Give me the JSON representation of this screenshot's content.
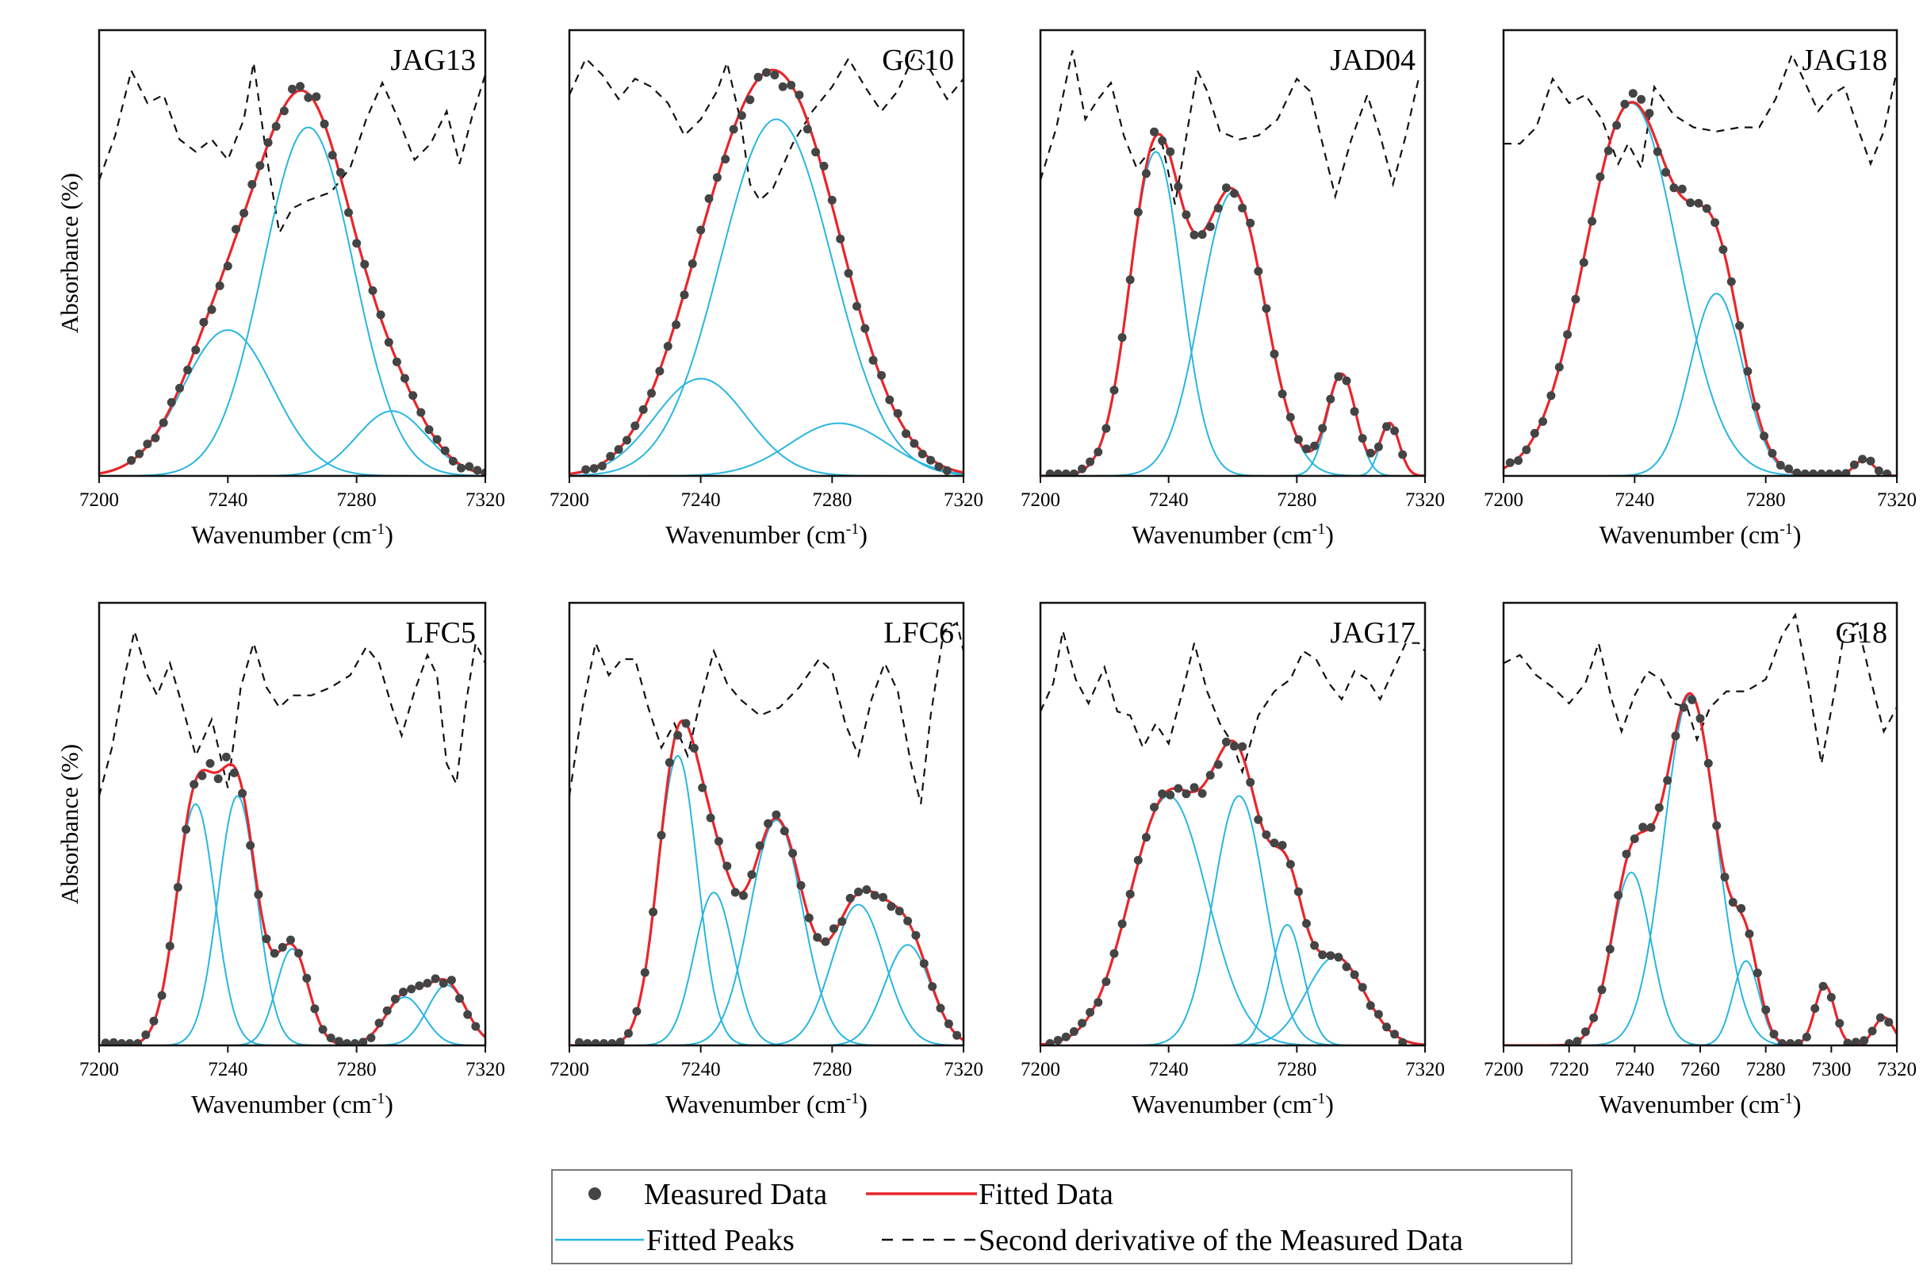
{
  "figure": {
    "legend": {
      "measured": "Measured Data",
      "fitted": "Fitted Data",
      "peaks": "Fitted Peaks",
      "second_derivative": "Second derivative of the Measured Data"
    },
    "colors": {
      "measured": "#444444",
      "fitted": "#e8262a",
      "peaks": "#29b6e0",
      "second_derivative": "#111111"
    }
  },
  "chart_data": [
    {
      "type": "line",
      "title": "JAG13",
      "xlabel": "Wavenumber (cm",
      "xlabel_sup": "-1",
      "xlabel_end": ")",
      "ylabel": "Absorbance (%)",
      "xlim": [
        7200,
        7320
      ],
      "ylim": [
        0,
        1.1
      ],
      "xticks": [
        7200,
        7240,
        7280,
        7320
      ],
      "measured_range": [
        7210,
        7320
      ],
      "peaks": [
        {
          "center": 7240,
          "amp": 0.36,
          "sigma": 14
        },
        {
          "center": 7265,
          "amp": 0.86,
          "sigma": 14
        },
        {
          "center": 7291,
          "amp": 0.16,
          "sigma": 11
        }
      ],
      "second_derivative": [
        [
          7200,
          0.73
        ],
        [
          7205,
          0.84
        ],
        [
          7210,
          1.0
        ],
        [
          7215,
          0.92
        ],
        [
          7220,
          0.94
        ],
        [
          7225,
          0.83
        ],
        [
          7230,
          0.8
        ],
        [
          7235,
          0.83
        ],
        [
          7240,
          0.78
        ],
        [
          7245,
          0.88
        ],
        [
          7248,
          1.02
        ],
        [
          7252,
          0.79
        ],
        [
          7256,
          0.6
        ],
        [
          7260,
          0.66
        ],
        [
          7265,
          0.68
        ],
        [
          7272,
          0.7
        ],
        [
          7278,
          0.76
        ],
        [
          7283,
          0.88
        ],
        [
          7288,
          0.97
        ],
        [
          7293,
          0.88
        ],
        [
          7298,
          0.78
        ],
        [
          7303,
          0.82
        ],
        [
          7308,
          0.9
        ],
        [
          7312,
          0.77
        ],
        [
          7316,
          0.89
        ],
        [
          7320,
          0.99
        ]
      ]
    },
    {
      "type": "line",
      "title": "GC10",
      "xlabel": "Wavenumber (cm",
      "xlabel_sup": "-1",
      "xlabel_end": ")",
      "ylabel": "Absorbance (%)",
      "xlim": [
        7200,
        7320
      ],
      "ylim": [
        0,
        1.1
      ],
      "xticks": [
        7200,
        7240,
        7280,
        7320
      ],
      "measured_range": [
        7205,
        7315
      ],
      "peaks": [
        {
          "center": 7240,
          "amp": 0.24,
          "sigma": 14
        },
        {
          "center": 7263,
          "amp": 0.88,
          "sigma": 17
        },
        {
          "center": 7282,
          "amp": 0.13,
          "sigma": 15
        }
      ],
      "second_derivative": [
        [
          7200,
          0.94
        ],
        [
          7205,
          1.03
        ],
        [
          7210,
          0.99
        ],
        [
          7215,
          0.93
        ],
        [
          7220,
          0.98
        ],
        [
          7225,
          0.96
        ],
        [
          7230,
          0.92
        ],
        [
          7235,
          0.84
        ],
        [
          7240,
          0.88
        ],
        [
          7245,
          0.95
        ],
        [
          7248,
          1.02
        ],
        [
          7252,
          0.88
        ],
        [
          7255,
          0.72
        ],
        [
          7258,
          0.68
        ],
        [
          7262,
          0.71
        ],
        [
          7268,
          0.82
        ],
        [
          7274,
          0.9
        ],
        [
          7280,
          0.96
        ],
        [
          7285,
          1.03
        ],
        [
          7290,
          0.96
        ],
        [
          7295,
          0.9
        ],
        [
          7300,
          0.95
        ],
        [
          7305,
          1.04
        ],
        [
          7310,
          1.0
        ],
        [
          7315,
          0.93
        ],
        [
          7320,
          0.98
        ]
      ]
    },
    {
      "type": "line",
      "title": "JAD04",
      "xlabel": "Wavenumber (cm",
      "xlabel_sup": "-1",
      "xlabel_end": ")",
      "ylabel": "Absorbance (%)",
      "xlim": [
        7200,
        7320
      ],
      "ylim": [
        0,
        1.1
      ],
      "xticks": [
        7200,
        7240,
        7280,
        7320
      ],
      "measured_range": [
        7203,
        7315
      ],
      "peaks": [
        {
          "center": 7236,
          "amp": 0.8,
          "sigma": 8
        },
        {
          "center": 7260,
          "amp": 0.7,
          "sigma": 10
        },
        {
          "center": 7294,
          "amp": 0.25,
          "sigma": 4.5
        },
        {
          "center": 7309,
          "amp": 0.13,
          "sigma": 3
        }
      ],
      "second_derivative": [
        [
          7200,
          0.73
        ],
        [
          7205,
          0.86
        ],
        [
          7210,
          1.05
        ],
        [
          7214,
          0.88
        ],
        [
          7218,
          0.93
        ],
        [
          7222,
          0.97
        ],
        [
          7226,
          0.84
        ],
        [
          7230,
          0.76
        ],
        [
          7234,
          0.8
        ],
        [
          7238,
          0.82
        ],
        [
          7242,
          0.67
        ],
        [
          7246,
          0.86
        ],
        [
          7249,
          1.0
        ],
        [
          7252,
          0.95
        ],
        [
          7256,
          0.85
        ],
        [
          7262,
          0.83
        ],
        [
          7268,
          0.84
        ],
        [
          7274,
          0.88
        ],
        [
          7280,
          0.98
        ],
        [
          7284,
          0.95
        ],
        [
          7288,
          0.82
        ],
        [
          7292,
          0.69
        ],
        [
          7297,
          0.83
        ],
        [
          7302,
          0.94
        ],
        [
          7306,
          0.84
        ],
        [
          7310,
          0.72
        ],
        [
          7314,
          0.84
        ],
        [
          7318,
          0.98
        ]
      ]
    },
    {
      "type": "line",
      "title": "JAG18",
      "xlabel": "Wavenumber (cm",
      "xlabel_sup": "-1",
      "xlabel_end": ")",
      "ylabel": "Absorbance (%)",
      "xlim": [
        7200,
        7320
      ],
      "ylim": [
        0,
        1.1
      ],
      "xticks": [
        7200,
        7240,
        7280,
        7320
      ],
      "measured_range": [
        7202,
        7318
      ],
      "peaks": [
        {
          "center": 7239,
          "amp": 0.92,
          "sigma": 14
        },
        {
          "center": 7265,
          "amp": 0.45,
          "sigma": 8
        },
        {
          "center": 7310,
          "amp": 0.04,
          "sigma": 3
        }
      ],
      "second_derivative": [
        [
          7200,
          0.82
        ],
        [
          7205,
          0.82
        ],
        [
          7210,
          0.86
        ],
        [
          7215,
          0.98
        ],
        [
          7220,
          0.92
        ],
        [
          7225,
          0.94
        ],
        [
          7230,
          0.88
        ],
        [
          7235,
          0.77
        ],
        [
          7238,
          0.82
        ],
        [
          7242,
          0.76
        ],
        [
          7246,
          0.96
        ],
        [
          7252,
          0.89
        ],
        [
          7258,
          0.86
        ],
        [
          7265,
          0.85
        ],
        [
          7272,
          0.86
        ],
        [
          7278,
          0.86
        ],
        [
          7283,
          0.93
        ],
        [
          7288,
          1.04
        ],
        [
          7292,
          0.97
        ],
        [
          7296,
          0.9
        ],
        [
          7300,
          0.94
        ],
        [
          7304,
          0.96
        ],
        [
          7308,
          0.86
        ],
        [
          7312,
          0.77
        ],
        [
          7316,
          0.85
        ],
        [
          7320,
          1.0
        ]
      ]
    },
    {
      "type": "line",
      "title": "LFC5",
      "xlabel": "Wavenumber (cm",
      "xlabel_sup": "-1",
      "xlabel_end": ")",
      "ylabel": "Absorbance (%)",
      "xlim": [
        7200,
        7320
      ],
      "ylim": [
        0,
        1.1
      ],
      "xticks": [
        7200,
        7240,
        7280,
        7320
      ],
      "measured_range": [
        7202,
        7318
      ],
      "peaks": [
        {
          "center": 7230,
          "amp": 0.6,
          "sigma": 6
        },
        {
          "center": 7243,
          "amp": 0.62,
          "sigma": 6
        },
        {
          "center": 7260,
          "amp": 0.24,
          "sigma": 5
        },
        {
          "center": 7295,
          "amp": 0.12,
          "sigma": 6
        },
        {
          "center": 7308,
          "amp": 0.15,
          "sigma": 6
        }
      ],
      "second_derivative": [
        [
          7200,
          0.62
        ],
        [
          7204,
          0.74
        ],
        [
          7208,
          0.92
        ],
        [
          7211,
          1.03
        ],
        [
          7215,
          0.92
        ],
        [
          7218,
          0.87
        ],
        [
          7222,
          0.95
        ],
        [
          7226,
          0.84
        ],
        [
          7230,
          0.72
        ],
        [
          7235,
          0.81
        ],
        [
          7240,
          0.64
        ],
        [
          7244,
          0.89
        ],
        [
          7248,
          1.0
        ],
        [
          7252,
          0.89
        ],
        [
          7256,
          0.84
        ],
        [
          7260,
          0.87
        ],
        [
          7266,
          0.87
        ],
        [
          7272,
          0.89
        ],
        [
          7278,
          0.92
        ],
        [
          7283,
          0.99
        ],
        [
          7287,
          0.95
        ],
        [
          7291,
          0.84
        ],
        [
          7294,
          0.77
        ],
        [
          7298,
          0.88
        ],
        [
          7302,
          0.97
        ],
        [
          7305,
          0.92
        ],
        [
          7308,
          0.7
        ],
        [
          7311,
          0.65
        ],
        [
          7314,
          0.85
        ],
        [
          7317,
          1.0
        ],
        [
          7320,
          0.95
        ]
      ]
    },
    {
      "type": "line",
      "title": "LFC6",
      "xlabel": "Wavenumber (cm",
      "xlabel_sup": "-1",
      "xlabel_end": ")",
      "ylabel": "Absorbance (%)",
      "xlim": [
        7200,
        7320
      ],
      "ylim": [
        0,
        1.1
      ],
      "xticks": [
        7200,
        7240,
        7280,
        7320
      ],
      "measured_range": [
        7203,
        7318
      ],
      "peaks": [
        {
          "center": 7233,
          "amp": 0.72,
          "sigma": 6
        },
        {
          "center": 7244,
          "amp": 0.38,
          "sigma": 6
        },
        {
          "center": 7263,
          "amp": 0.56,
          "sigma": 8
        },
        {
          "center": 7288,
          "amp": 0.35,
          "sigma": 8
        },
        {
          "center": 7303,
          "amp": 0.25,
          "sigma": 7
        }
      ],
      "second_derivative": [
        [
          7200,
          0.62
        ],
        [
          7204,
          0.84
        ],
        [
          7208,
          1.0
        ],
        [
          7212,
          0.92
        ],
        [
          7216,
          0.96
        ],
        [
          7220,
          0.96
        ],
        [
          7224,
          0.84
        ],
        [
          7228,
          0.74
        ],
        [
          7232,
          0.8
        ],
        [
          7236,
          0.72
        ],
        [
          7240,
          0.86
        ],
        [
          7244,
          0.98
        ],
        [
          7248,
          0.9
        ],
        [
          7252,
          0.86
        ],
        [
          7258,
          0.82
        ],
        [
          7264,
          0.84
        ],
        [
          7270,
          0.89
        ],
        [
          7276,
          0.96
        ],
        [
          7280,
          0.93
        ],
        [
          7284,
          0.8
        ],
        [
          7288,
          0.72
        ],
        [
          7292,
          0.86
        ],
        [
          7296,
          0.95
        ],
        [
          7300,
          0.88
        ],
        [
          7304,
          0.7
        ],
        [
          7307,
          0.6
        ],
        [
          7310,
          0.82
        ],
        [
          7314,
          1.03
        ],
        [
          7318,
          1.05
        ],
        [
          7320,
          0.98
        ]
      ]
    },
    {
      "type": "line",
      "title": "JAG17",
      "xlabel": "Wavenumber (cm",
      "xlabel_sup": "-1",
      "xlabel_end": ")",
      "ylabel": "Absorbance (%)",
      "xlim": [
        7200,
        7320
      ],
      "ylim": [
        0,
        1.1
      ],
      "xticks": [
        7200,
        7240,
        7280,
        7320
      ],
      "measured_range": [
        7203,
        7315
      ],
      "peaks": [
        {
          "center": 7240,
          "amp": 0.62,
          "sigma": 12
        },
        {
          "center": 7262,
          "amp": 0.62,
          "sigma": 8
        },
        {
          "center": 7277,
          "amp": 0.3,
          "sigma": 5
        },
        {
          "center": 7292,
          "amp": 0.22,
          "sigma": 9
        }
      ],
      "second_derivative": [
        [
          7200,
          0.83
        ],
        [
          7204,
          0.9
        ],
        [
          7207,
          1.03
        ],
        [
          7211,
          0.91
        ],
        [
          7215,
          0.85
        ],
        [
          7220,
          0.94
        ],
        [
          7224,
          0.83
        ],
        [
          7228,
          0.82
        ],
        [
          7232,
          0.74
        ],
        [
          7236,
          0.8
        ],
        [
          7240,
          0.75
        ],
        [
          7245,
          0.9
        ],
        [
          7248,
          1.0
        ],
        [
          7252,
          0.88
        ],
        [
          7256,
          0.8
        ],
        [
          7260,
          0.75
        ],
        [
          7263,
          0.68
        ],
        [
          7268,
          0.82
        ],
        [
          7273,
          0.88
        ],
        [
          7278,
          0.91
        ],
        [
          7282,
          0.98
        ],
        [
          7286,
          0.96
        ],
        [
          7290,
          0.9
        ],
        [
          7294,
          0.86
        ],
        [
          7298,
          0.93
        ],
        [
          7302,
          0.91
        ],
        [
          7306,
          0.86
        ],
        [
          7310,
          0.93
        ],
        [
          7314,
          1.0
        ],
        [
          7318,
          1.0
        ],
        [
          7320,
          0.98
        ]
      ]
    },
    {
      "type": "line",
      "title": "G18",
      "xlabel": "Wavenumber (cm",
      "xlabel_sup": "-1",
      "xlabel_end": ")",
      "ylabel": "Absorbance (%)",
      "xlim": [
        7200,
        7320
      ],
      "ylim": [
        0,
        1.1
      ],
      "xticks": [
        7200,
        7220,
        7240,
        7260,
        7280,
        7300,
        7320
      ],
      "measured_range": [
        7220,
        7318
      ],
      "peaks": [
        {
          "center": 7239,
          "amp": 0.43,
          "sigma": 6
        },
        {
          "center": 7257,
          "amp": 0.87,
          "sigma": 8
        },
        {
          "center": 7274,
          "amp": 0.21,
          "sigma": 4
        },
        {
          "center": 7298,
          "amp": 0.15,
          "sigma": 3
        },
        {
          "center": 7316,
          "amp": 0.07,
          "sigma": 3
        }
      ],
      "second_derivative": [
        [
          7200,
          0.95
        ],
        [
          7205,
          0.97
        ],
        [
          7210,
          0.92
        ],
        [
          7215,
          0.89
        ],
        [
          7220,
          0.85
        ],
        [
          7225,
          0.9
        ],
        [
          7229,
          1.0
        ],
        [
          7233,
          0.86
        ],
        [
          7236,
          0.78
        ],
        [
          7240,
          0.87
        ],
        [
          7244,
          0.93
        ],
        [
          7248,
          0.91
        ],
        [
          7252,
          0.85
        ],
        [
          7256,
          0.84
        ],
        [
          7259,
          0.76
        ],
        [
          7263,
          0.84
        ],
        [
          7268,
          0.88
        ],
        [
          7274,
          0.88
        ],
        [
          7280,
          0.91
        ],
        [
          7285,
          1.02
        ],
        [
          7289,
          1.07
        ],
        [
          7293,
          0.9
        ],
        [
          7297,
          0.7
        ],
        [
          7301,
          0.88
        ],
        [
          7304,
          1.03
        ],
        [
          7308,
          1.05
        ],
        [
          7312,
          0.91
        ],
        [
          7316,
          0.78
        ],
        [
          7320,
          0.84
        ]
      ]
    }
  ]
}
